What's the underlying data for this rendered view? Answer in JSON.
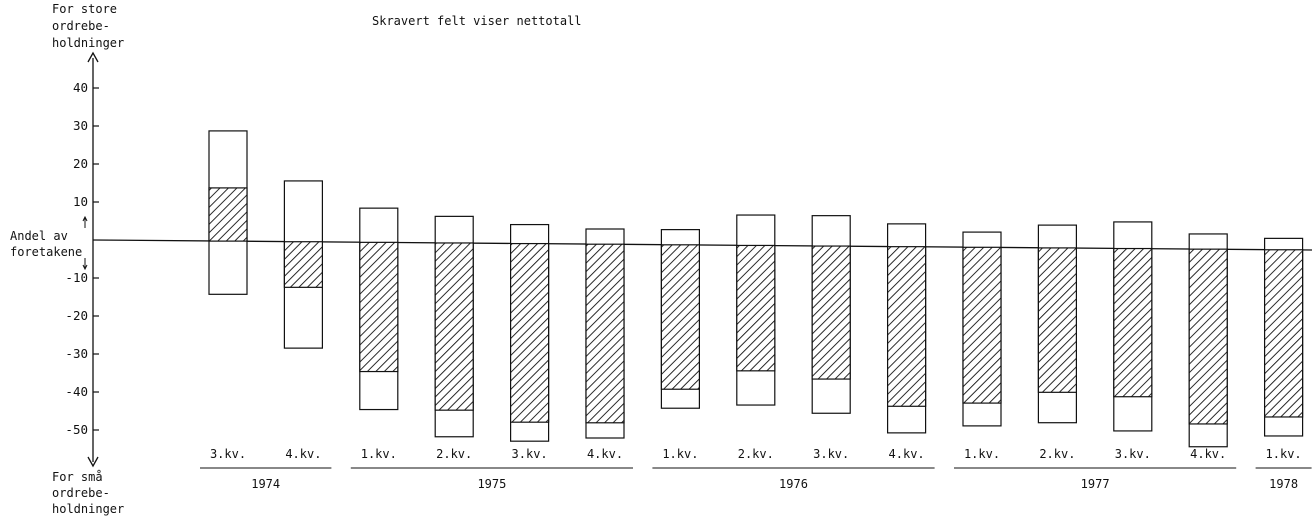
{
  "chart_data": {
    "type": "bar",
    "title": "Skravert felt viser nettotall",
    "y_top_label": [
      "For store",
      "ordrebe-",
      "holdninger"
    ],
    "y_bottom_label": [
      "For små",
      "ordrebe-",
      "holdninger"
    ],
    "y_mid_label": [
      "Andel av",
      "foretakene"
    ],
    "y_ticks": [
      40,
      30,
      20,
      10,
      -10,
      -20,
      -30,
      -40,
      -50
    ],
    "y_tick_labels": [
      "40",
      "30",
      "20",
      "10",
      "-10",
      "-20",
      "-30",
      "-40",
      "-50"
    ],
    "ylim": [
      -57,
      48
    ],
    "grid": false,
    "legend": "none",
    "categories": [
      "3.kv.",
      "4.kv.",
      "1.kv.",
      "2.kv.",
      "3.kv.",
      "4.kv.",
      "1.kv.",
      "2.kv.",
      "3.kv.",
      "4.kv.",
      "1.kv.",
      "2.kv.",
      "3.kv.",
      "4.kv.",
      "1.kv."
    ],
    "years": [
      {
        "label": "1974",
        "from": 0,
        "to": 1
      },
      {
        "label": "1975",
        "from": 2,
        "to": 5
      },
      {
        "label": "1976",
        "from": 6,
        "to": 9
      },
      {
        "label": "1977",
        "from": 10,
        "to": 13
      },
      {
        "label": "1978",
        "from": 14,
        "to": 14
      }
    ],
    "series": [
      {
        "name": "",
        "values": [
          29,
          16,
          9,
          7,
          5,
          4,
          4,
          8,
          8,
          6,
          4,
          6,
          7,
          4,
          3
        ]
      },
      {
        "name": "",
        "values": [
          -14,
          -28,
          -44,
          -51,
          -52,
          -51,
          -43,
          -42,
          -44,
          -49,
          -47,
          -46,
          -48,
          -52,
          -49
        ]
      },
      {
        "name": "",
        "values": [
          14,
          -12,
          -34,
          -44,
          -47,
          -47,
          -38,
          -33,
          -35,
          -42,
          -41,
          -38,
          -39,
          -46,
          -44
        ]
      }
    ]
  }
}
